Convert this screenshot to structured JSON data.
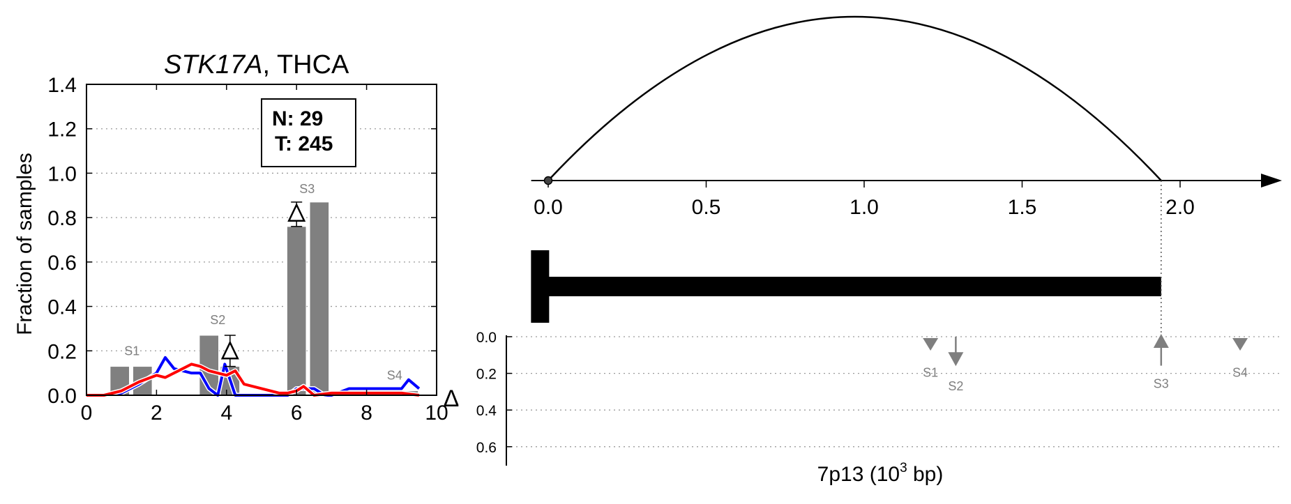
{
  "colors": {
    "bar": "#808080",
    "normal_line": "#0000ff",
    "tumor_line": "#ff0000",
    "axis": "#000000",
    "annotation": "#7f7f7f",
    "grid": "#999999"
  },
  "chart_data": [
    {
      "type": "bar",
      "title_gene": "STK17A",
      "title_suffix": ", THCA",
      "ylabel": "Fraction of samples",
      "xlim": [
        0,
        10
      ],
      "ylim": [
        0,
        1.4
      ],
      "xticks": [
        "0",
        "2",
        "4",
        "6",
        "8",
        "10"
      ],
      "yticks": [
        "0.0",
        "0.2",
        "0.4",
        "0.6",
        "0.8",
        "1.0",
        "1.2",
        "1.4"
      ],
      "grid": "horizontal dotted",
      "legend_box": {
        "n_label": "N: 29",
        "t_label": "T: 245"
      },
      "bars": [
        {
          "x": 0.95,
          "value": 0.13
        },
        {
          "x": 1.6,
          "value": 0.13
        },
        {
          "x": 3.5,
          "value": 0.27
        },
        {
          "x": 4.1,
          "value": 0.13
        },
        {
          "x": 6.0,
          "value": 0.76
        },
        {
          "x": 6.65,
          "value": 0.87
        },
        {
          "x": 8.6,
          "value": 0.02
        },
        {
          "x": 9.2,
          "value": 0.02
        }
      ],
      "segment_labels": [
        {
          "label": "S1",
          "x": 1.3,
          "y": 0.18
        },
        {
          "label": "S2",
          "x": 3.75,
          "y": 0.32
        },
        {
          "label": "S3",
          "x": 6.3,
          "y": 0.91
        },
        {
          "label": "S4",
          "x": 8.8,
          "y": 0.07
        }
      ],
      "delta_markers": [
        {
          "x": 4.1,
          "y": 0.2,
          "err_low": 0.13,
          "err_high": 0.27
        },
        {
          "x": 6.0,
          "y": 0.82,
          "err_low": 0.76,
          "err_high": 0.87
        }
      ],
      "series": [
        {
          "color_key": "normal_line",
          "x": [
            0,
            0.5,
            1.0,
            1.5,
            2.0,
            2.25,
            2.5,
            3.0,
            3.25,
            3.5,
            3.75,
            3.95,
            4.25,
            4.5,
            5.0,
            5.5,
            5.75,
            6.0,
            6.2,
            6.5,
            6.8,
            7.0,
            7.5,
            8.0,
            8.5,
            9.0,
            9.2,
            9.5
          ],
          "y": [
            0,
            0,
            0.01,
            0.05,
            0.1,
            0.17,
            0.12,
            0.1,
            0.1,
            0.03,
            0.0,
            0.14,
            0.0,
            0.0,
            0.0,
            0.0,
            0.0,
            0.03,
            0.03,
            0.03,
            0.0,
            0.0,
            0.03,
            0.03,
            0.03,
            0.03,
            0.07,
            0.03
          ]
        },
        {
          "color_key": "tumor_line",
          "x": [
            0,
            0.5,
            1.0,
            1.5,
            2.0,
            2.25,
            2.5,
            3.0,
            3.25,
            3.5,
            3.75,
            4.0,
            4.25,
            4.5,
            5.0,
            5.5,
            5.75,
            6.0,
            6.2,
            6.5,
            7.0,
            7.5,
            8.0,
            8.5,
            9.0,
            9.5
          ],
          "y": [
            0,
            0,
            0.02,
            0.06,
            0.09,
            0.08,
            0.1,
            0.14,
            0.13,
            0.11,
            0.1,
            0.09,
            0.11,
            0.05,
            0.03,
            0.01,
            0.01,
            0.02,
            0.04,
            0.0,
            0.01,
            0.01,
            0.01,
            0.01,
            0.01,
            0.0
          ]
        }
      ]
    },
    {
      "type": "line",
      "xticks": [
        "0.0",
        "0.5",
        "1.0",
        "1.5",
        "2.0"
      ],
      "xlim": [
        -0.12,
        2.3
      ],
      "arc": {
        "start": 0.0,
        "end": 1.94
      },
      "gene_body": {
        "start": -0.05,
        "end": 1.94
      }
    },
    {
      "type": "scatter",
      "xlabel_main": "7p13 (10",
      "xlabel_sup": "3",
      "xlabel_tail": " bp)",
      "ylabel": "Δ",
      "ylim": [
        0.0,
        0.68
      ],
      "yticks": [
        "0.0",
        "0.2",
        "0.4",
        "0.6"
      ],
      "grid": "horizontal dotted",
      "segments": [
        {
          "label": "S1",
          "x": 1.21,
          "delta": 0.02,
          "direction": "down",
          "marker": "triangle-down"
        },
        {
          "label": "S2",
          "x": 1.29,
          "delta": 0.13,
          "direction": "down",
          "marker": "arrow-down"
        },
        {
          "label": "S3",
          "x": 1.94,
          "delta": 0.12,
          "direction": "up",
          "marker": "arrow-up"
        },
        {
          "label": "S4",
          "x": 2.19,
          "delta": 0.02,
          "direction": "down",
          "marker": "triangle-down"
        }
      ]
    }
  ]
}
